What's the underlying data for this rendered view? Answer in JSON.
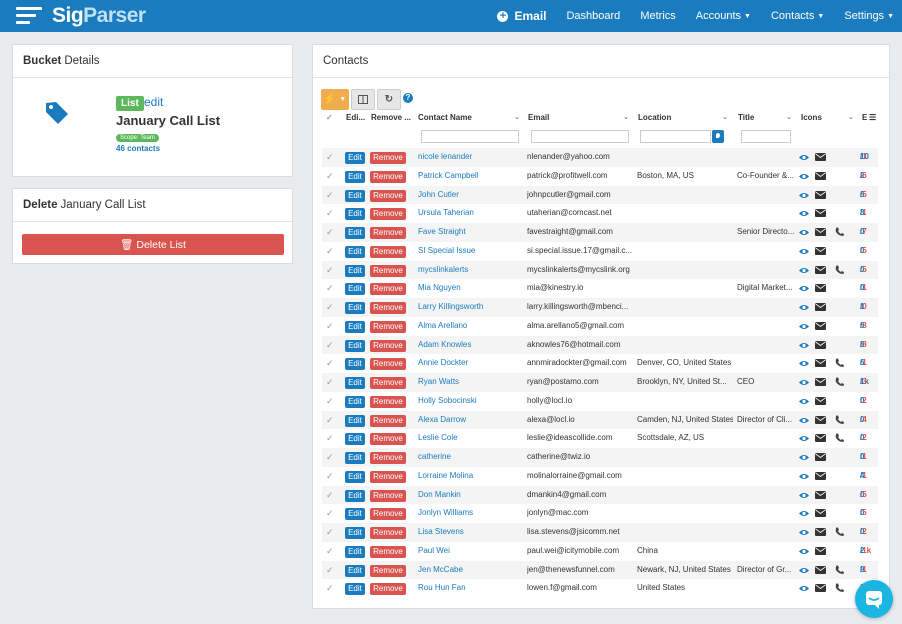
{
  "brand": {
    "name_part1": "Sig",
    "name_part2": "Parser"
  },
  "nav": {
    "email": "Email",
    "dashboard": "Dashboard",
    "metrics": "Metrics",
    "accounts": "Accounts",
    "contacts": "Contacts",
    "settings": "Settings"
  },
  "bucket_panel": {
    "title_bold": "Bucket",
    "title_rest": "Details",
    "badge": "List",
    "edit": "edit",
    "list_name": "January Call List",
    "scope": "Scope: Team",
    "contacts_count": "46 contacts"
  },
  "delete_panel": {
    "title_bold": "Delete",
    "title_rest": "January Call List",
    "button": "Delete List"
  },
  "contacts_panel": {
    "title": "Contacts",
    "columns": {
      "edit": "Edi...",
      "remove": "Remove ...",
      "name": "Contact Name",
      "email": "Email",
      "location": "Location",
      "title": "Title",
      "icons": "Icons",
      "extra": "E"
    },
    "edit_label": "Edit",
    "remove_label": "Remove",
    "rows": [
      {
        "name": "nicole lenander",
        "email": "nlenander@yahoo.com",
        "location": "",
        "title": "",
        "phone": false,
        "s1": "10",
        "s2": "1"
      },
      {
        "name": "Patrick Campbell",
        "email": "patrick@profitwell.com",
        "location": "Boston, MA, US",
        "title": "Co-Founder &...",
        "phone": false,
        "s1": "2",
        "s2": "6"
      },
      {
        "name": "John Cutler",
        "email": "johnpcutler@gmail.com",
        "location": "",
        "title": "",
        "phone": false,
        "s1": "6",
        "s2": "5"
      },
      {
        "name": "Ursula Taherian",
        "email": "utaherian@comcast.net",
        "location": "",
        "title": "",
        "phone": false,
        "s1": "8",
        "s2": "1"
      },
      {
        "name": "Fave Straight",
        "email": "favestraight@gmail.com",
        "location": "",
        "title": "Senior Directo...",
        "phone": true,
        "s1": "0",
        "s2": "7"
      },
      {
        "name": "SI Special Issue",
        "email": "si.special.issue.17@gmail.c...",
        "location": "",
        "title": "",
        "phone": false,
        "s1": "0",
        "s2": "5"
      },
      {
        "name": "mycslinkalerts",
        "email": "mycslinkalerts@mycslink.org",
        "location": "",
        "title": "",
        "phone": true,
        "s1": "0",
        "s2": "5"
      },
      {
        "name": "Mia Nguyen",
        "email": "mia@kinestry.io",
        "location": "",
        "title": "Digital Market...",
        "phone": false,
        "s1": "0",
        "s2": "1"
      },
      {
        "name": "Larry Killingsworth",
        "email": "larry.killingsworth@mbenci...",
        "location": "",
        "title": "",
        "phone": false,
        "s1": "1",
        "s2": "0"
      },
      {
        "name": "Alma Arellano",
        "email": "alma.arellano5@gmail.com",
        "location": "",
        "title": "",
        "phone": false,
        "s1": "6",
        "s2": "8"
      },
      {
        "name": "Adam Knowles",
        "email": "aknowles76@hotmail.com",
        "location": "",
        "title": "",
        "phone": false,
        "s1": "8",
        "s2": "8"
      },
      {
        "name": "Annie Dockter",
        "email": "annmiradockter@gmail.com",
        "location": "Denver, CO, United States",
        "title": "",
        "phone": true,
        "s1": "6",
        "s2": "1"
      },
      {
        "name": "Ryan Watts",
        "email": "ryan@postamo.com",
        "location": "Brooklyn, NY, United St...",
        "title": "CEO",
        "phone": true,
        "s1": "1k",
        "s2": "3"
      },
      {
        "name": "Holly Sobocinski",
        "email": "holly@locl.io",
        "location": "",
        "title": "",
        "phone": false,
        "s1": "0",
        "s2": "2"
      },
      {
        "name": "Alexa Darrow",
        "email": "alexa@locl.io",
        "location": "Camden, NJ, United States",
        "title": "Director of Cli...",
        "phone": true,
        "s1": "0",
        "s2": "4"
      },
      {
        "name": "Leslie Cole",
        "email": "leslie@ideascollide.com",
        "location": "Scottsdale, AZ, US",
        "title": "",
        "phone": true,
        "s1": "0",
        "s2": "2"
      },
      {
        "name": "catherine",
        "email": "catherine@twiz.io",
        "location": "",
        "title": "",
        "phone": false,
        "s1": "0",
        "s2": "1"
      },
      {
        "name": "Lorraine Molina",
        "email": "molinalorraine@gmail.com",
        "location": "",
        "title": "",
        "phone": false,
        "s1": "4",
        "s2": "1"
      },
      {
        "name": "Don Mankin",
        "email": "dmankin4@gmail.com",
        "location": "",
        "title": "",
        "phone": false,
        "s1": "0",
        "s2": "5"
      },
      {
        "name": "Jonlyn Williams",
        "email": "jonlyn@mac.com",
        "location": "",
        "title": "",
        "phone": false,
        "s1": "0",
        "s2": "5"
      },
      {
        "name": "Lisa Stevens",
        "email": "lisa.stevens@jsicomm.net",
        "location": "",
        "title": "",
        "phone": true,
        "s1": "0",
        "s2": "2"
      },
      {
        "name": "Paul Wei",
        "email": "paul.wei@icitymobile.com",
        "location": "China",
        "title": "",
        "phone": false,
        "s1": "2",
        "s2": "1k"
      },
      {
        "name": "Jen McCabe",
        "email": "jen@thenewsfunnel.com",
        "location": "Newark, NJ, United States",
        "title": "Director of Gr...",
        "phone": true,
        "s1": "9",
        "s2": "1"
      },
      {
        "name": "Rou Hun Fan",
        "email": "lowen.f@gmail.com",
        "location": "United States",
        "title": "",
        "phone": true,
        "s1": "0",
        "s2": "1"
      }
    ]
  }
}
